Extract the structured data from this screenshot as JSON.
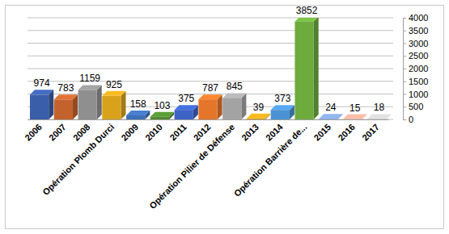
{
  "chart_data": {
    "type": "bar",
    "categories": [
      "2006",
      "2007",
      "2008",
      "Opération Plomb Durci",
      "2009",
      "2010",
      "2011",
      "2012",
      "Opération Pilier de Défense",
      "2013",
      "2014",
      "Opération Barrière de...",
      "2015",
      "2016",
      "2017"
    ],
    "values": [
      974,
      783,
      1159,
      925,
      158,
      103,
      375,
      787,
      845,
      39,
      373,
      3852,
      24,
      15,
      18
    ],
    "colors": [
      "#3b5ea8",
      "#c4622d",
      "#8f8f8f",
      "#d9a21b",
      "#3f6fb5",
      "#4f8a2f",
      "#3d62c4",
      "#e4752a",
      "#a3a3a3",
      "#d9a21b",
      "#4b92d4",
      "#6cab3c",
      "#7f9fd0",
      "#e2a592",
      "#c4c4c4"
    ],
    "ylim": [
      0,
      4000
    ],
    "yticks": [
      0,
      500,
      1000,
      1500,
      2000,
      2500,
      3000,
      3500,
      4000
    ],
    "grid": true,
    "data_labels": true
  }
}
